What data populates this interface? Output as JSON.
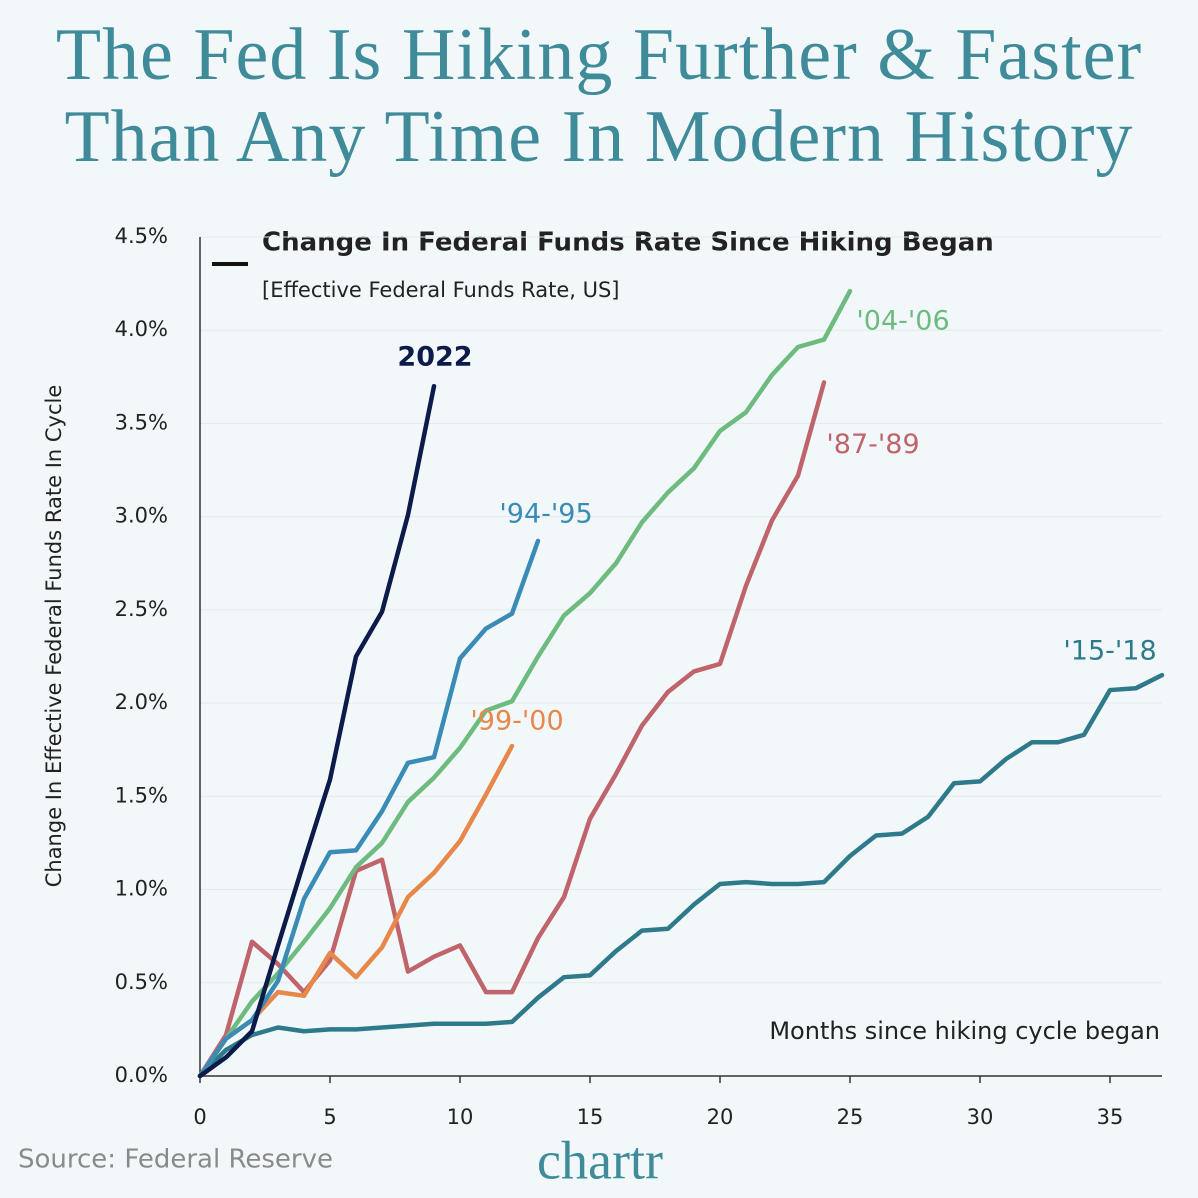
{
  "chart_data": {
    "type": "line",
    "title": "The Fed Is Hiking Further & Faster Than Any Time In Modern History",
    "legend_title": "Change In Federal Funds Rate Since Hiking Began",
    "subtitle": "[Effective Federal Funds Rate, US]",
    "y_label": "Change In Effective Federal Funds Rate In Cycle",
    "x_label": "Months since hiking cycle began",
    "source": "Source: Federal Reserve",
    "logo": "chartr",
    "xlim": [
      0,
      37
    ],
    "ylim": [
      0,
      4.5
    ],
    "xticks": [
      0,
      5,
      10,
      15,
      20,
      25,
      30,
      35
    ],
    "yticks": [
      {
        "value": 0,
        "label": "0.0%"
      },
      {
        "value": 0.5,
        "label": "0.5%"
      },
      {
        "value": 1,
        "label": "1.0%"
      },
      {
        "value": 1.5,
        "label": "1.5%"
      },
      {
        "value": 2,
        "label": "2.0%"
      },
      {
        "value": 2.5,
        "label": "2.5%"
      },
      {
        "value": 3,
        "label": "3.0%"
      },
      {
        "value": 3.5,
        "label": "3.5%"
      },
      {
        "value": 4,
        "label": "4.0%"
      },
      {
        "value": 4.5,
        "label": "4.5%"
      }
    ],
    "grid": true,
    "series": [
      {
        "name": "'15-'18",
        "color": "#2f7a8a",
        "x": [
          0,
          1,
          2,
          3,
          4,
          5,
          6,
          7,
          8,
          9,
          10,
          11,
          12,
          13,
          14,
          15,
          16,
          17,
          18,
          19,
          20,
          21,
          22,
          23,
          24,
          25,
          26,
          27,
          28,
          29,
          30,
          31,
          32,
          33,
          34,
          35,
          36,
          37
        ],
        "values": [
          0,
          0.14,
          0.22,
          0.26,
          0.24,
          0.25,
          0.25,
          0.26,
          0.27,
          0.28,
          0.28,
          0.28,
          0.29,
          0.42,
          0.53,
          0.54,
          0.67,
          0.78,
          0.79,
          0.92,
          1.03,
          1.04,
          1.03,
          1.03,
          1.04,
          1.18,
          1.29,
          1.3,
          1.39,
          1.57,
          1.58,
          1.7,
          1.79,
          1.79,
          1.83,
          2.07,
          2.08,
          2.15
        ]
      },
      {
        "name": "'87-'89",
        "color": "#c0646b",
        "x": [
          0,
          1,
          2,
          3,
          4,
          5,
          6,
          7,
          8,
          9,
          10,
          11,
          12,
          13,
          14,
          15,
          16,
          17,
          18,
          19,
          20,
          21,
          22,
          23,
          24
        ],
        "values": [
          0,
          0.22,
          0.72,
          0.6,
          0.45,
          0.62,
          1.1,
          1.16,
          0.56,
          0.64,
          0.7,
          0.45,
          0.45,
          0.74,
          0.96,
          1.38,
          1.62,
          1.88,
          2.06,
          2.17,
          2.21,
          2.63,
          2.98,
          3.22,
          3.72
        ]
      },
      {
        "name": "'04-'06",
        "color": "#6dbb7f",
        "x": [
          0,
          1,
          2,
          3,
          4,
          5,
          6,
          7,
          8,
          9,
          10,
          11,
          12,
          13,
          14,
          15,
          16,
          17,
          18,
          19,
          20,
          21,
          22,
          23,
          24,
          25
        ],
        "values": [
          0,
          0.2,
          0.4,
          0.55,
          0.72,
          0.9,
          1.12,
          1.25,
          1.47,
          1.6,
          1.76,
          1.96,
          2.01,
          2.25,
          2.47,
          2.59,
          2.75,
          2.97,
          3.13,
          3.26,
          3.46,
          3.56,
          3.76,
          3.91,
          3.95,
          4.21
        ]
      },
      {
        "name": "'99-'00",
        "color": "#e8874a",
        "x": [
          0,
          1,
          2,
          3,
          4,
          5,
          6,
          7,
          8,
          9,
          10,
          11,
          12
        ],
        "values": [
          0,
          0.2,
          0.3,
          0.45,
          0.43,
          0.66,
          0.53,
          0.69,
          0.96,
          1.09,
          1.26,
          1.51,
          1.77
        ]
      },
      {
        "name": "'94-'95",
        "color": "#3a8bb5",
        "x": [
          0,
          1,
          2,
          3,
          4,
          5,
          6,
          7,
          8,
          9,
          10,
          11,
          12,
          13
        ],
        "values": [
          0,
          0.2,
          0.3,
          0.51,
          0.95,
          1.2,
          1.21,
          1.42,
          1.68,
          1.71,
          2.24,
          2.4,
          2.48,
          2.87
        ]
      },
      {
        "name": "2022",
        "color": "#0d1b4b",
        "x": [
          0,
          1,
          2,
          3,
          4,
          5,
          6,
          7,
          8,
          9
        ],
        "values": [
          0,
          0.1,
          0.24,
          0.7,
          1.15,
          1.59,
          2.25,
          2.49,
          3.01,
          3.7
        ]
      }
    ]
  }
}
